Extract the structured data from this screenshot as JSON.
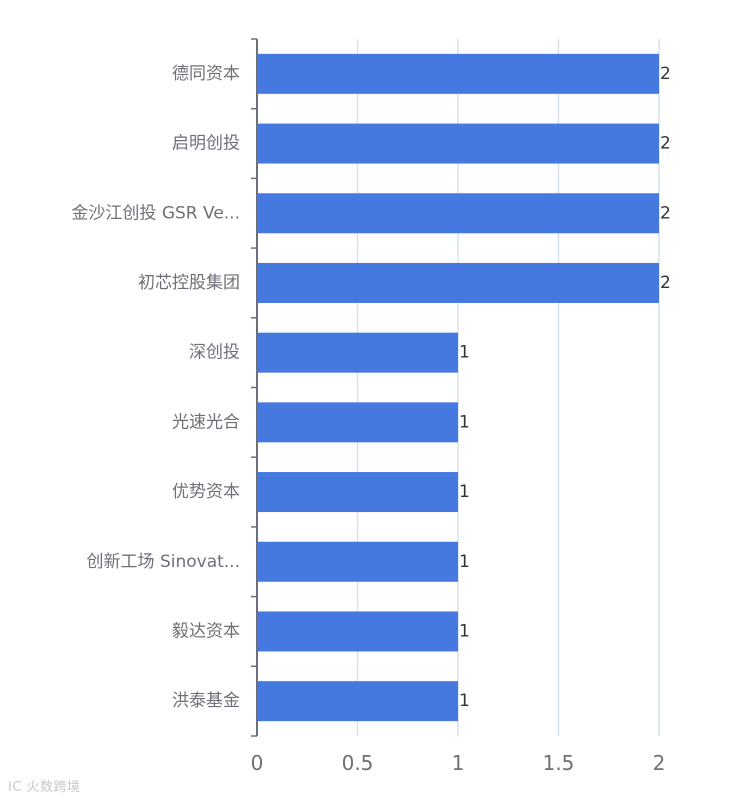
{
  "chart_data": {
    "type": "bar",
    "orientation": "horizontal",
    "categories": [
      "德同资本",
      "启明创投",
      "金沙江创投 GSR Ve...",
      "初芯控股集团",
      "深创投",
      "光速光合",
      "优势资本",
      "创新工场 Sinovat...",
      "毅达资本",
      "洪泰基金"
    ],
    "values": [
      2,
      2,
      2,
      2,
      1,
      1,
      1,
      1,
      1,
      1
    ],
    "x_ticks": [
      "0",
      "0.5",
      "1",
      "1.5",
      "2"
    ],
    "xlim": [
      0,
      2
    ],
    "grid": true,
    "bar_color": "#4579e0",
    "title": "",
    "xlabel": "",
    "ylabel": ""
  },
  "watermark": "IC 火数跨境"
}
